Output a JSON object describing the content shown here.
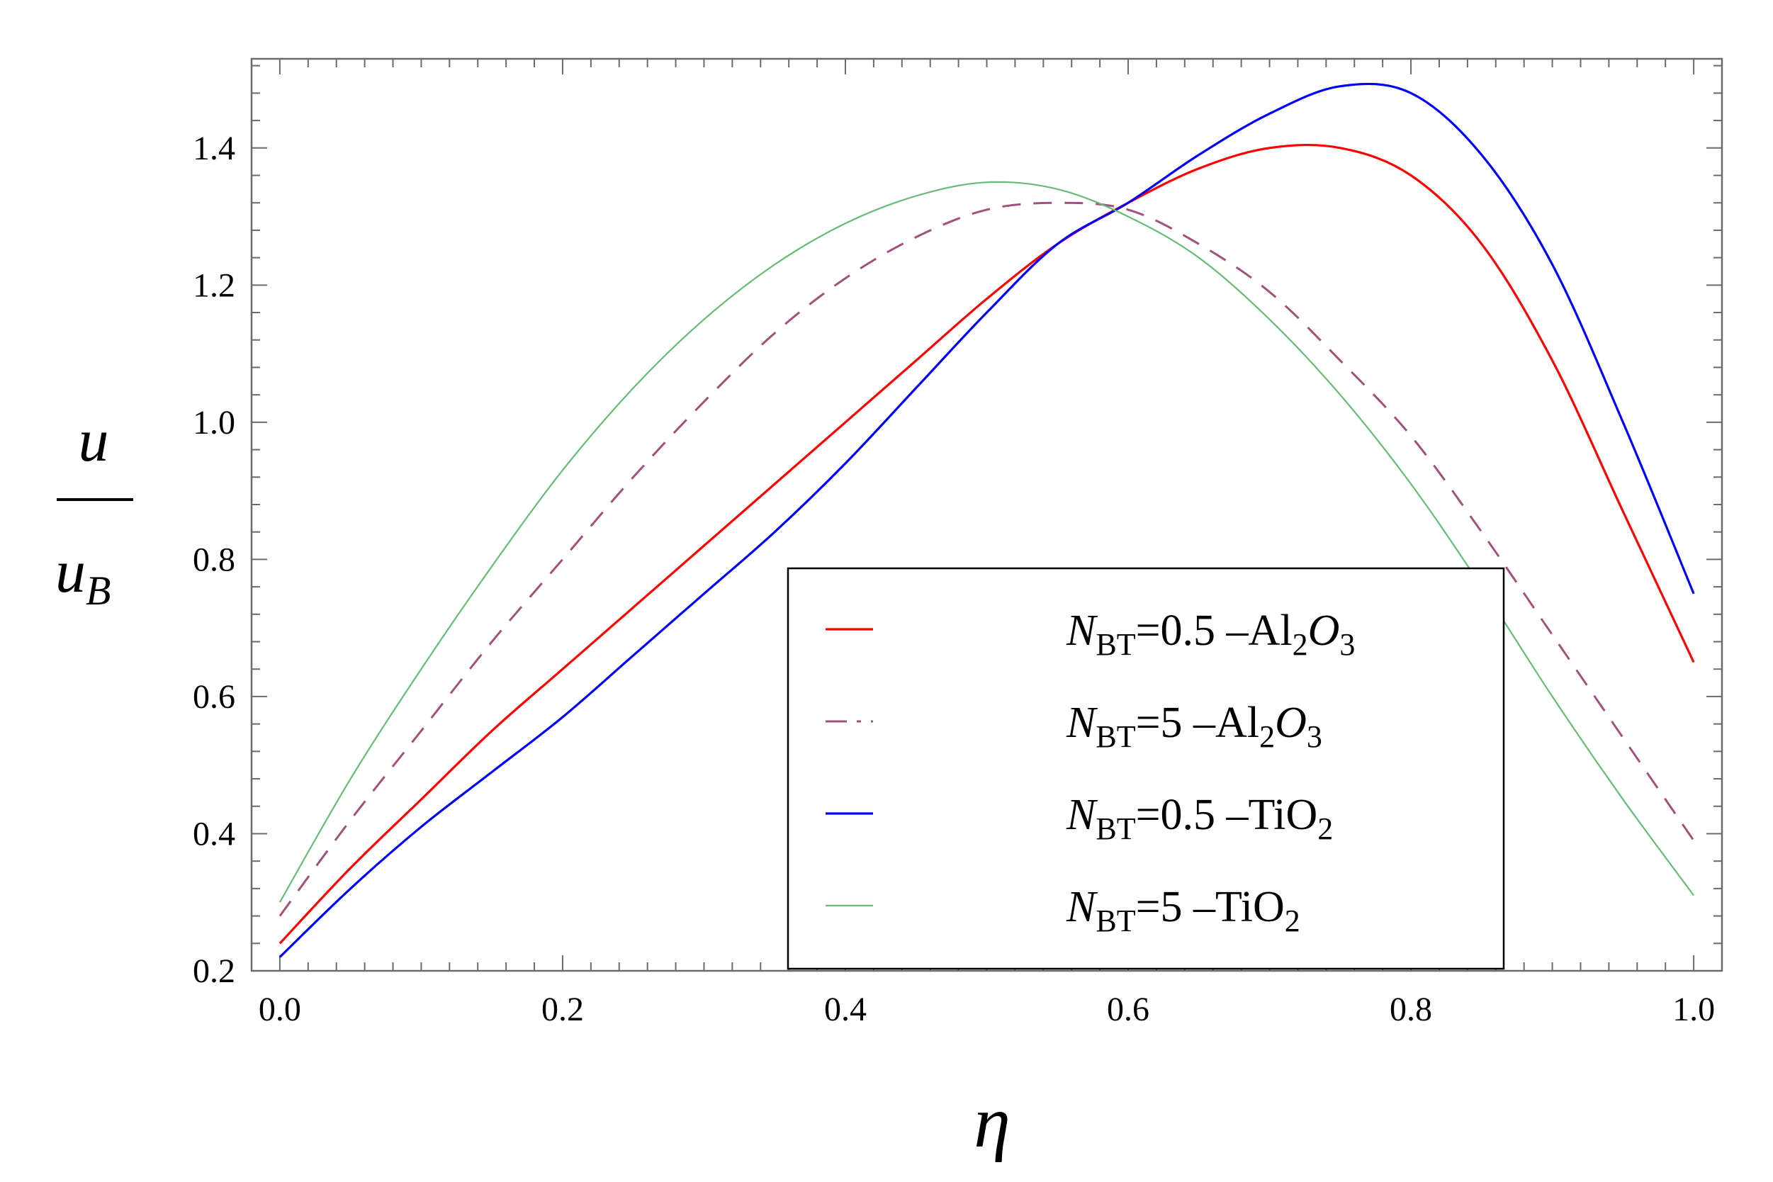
{
  "chart_data": {
    "type": "line",
    "title": "",
    "xlabel": "η",
    "ylabel": {
      "numerator": "u",
      "denominator": "u",
      "denominator_subscript": "B"
    },
    "xlim": [
      -0.02,
      1.02
    ],
    "ylim": [
      0.2,
      1.53
    ],
    "xticks": [
      0.0,
      0.2,
      0.4,
      0.6,
      0.8,
      1.0
    ],
    "xtick_labels": [
      "0.0",
      "0.2",
      "0.4",
      "0.6",
      "0.8",
      "1.0"
    ],
    "yticks": [
      0.2,
      0.4,
      0.6,
      0.8,
      1.0,
      1.2,
      1.4
    ],
    "ytick_labels": [
      "0.2",
      "0.4",
      "0.6",
      "0.8",
      "1.0",
      "1.2",
      "1.4"
    ],
    "grid": false,
    "legend_position": "lower-right",
    "x": [
      0.0,
      0.05,
      0.1,
      0.15,
      0.2,
      0.25,
      0.3,
      0.35,
      0.4,
      0.45,
      0.5,
      0.55,
      0.6,
      0.65,
      0.7,
      0.75,
      0.8,
      0.85,
      0.9,
      0.95,
      1.0
    ],
    "series": [
      {
        "symbol": "N",
        "subscript": "BT",
        "label_rest": "=0.5   –Al",
        "sub2": "2",
        "tail_italic": "O",
        "sub3": "3",
        "color": "#ff0000",
        "dash": "solid",
        "width": 3.2,
        "values": [
          0.24,
          0.35,
          0.45,
          0.55,
          0.64,
          0.73,
          0.82,
          0.91,
          1.0,
          1.09,
          1.18,
          1.26,
          1.32,
          1.37,
          1.4,
          1.4,
          1.36,
          1.26,
          1.09,
          0.87,
          0.65
        ]
      },
      {
        "symbol": "N",
        "subscript": "BT",
        "label_rest": "=5   –Al",
        "sub2": "2",
        "tail_italic": "O",
        "sub3": "3",
        "color": "#a0527c",
        "dash": "dashed",
        "width": 3,
        "values": [
          0.28,
          0.42,
          0.55,
          0.68,
          0.8,
          0.92,
          1.03,
          1.13,
          1.21,
          1.27,
          1.31,
          1.32,
          1.31,
          1.26,
          1.19,
          1.09,
          0.98,
          0.84,
          0.69,
          0.54,
          0.39
        ]
      },
      {
        "symbol": "N",
        "subscript": "BT",
        "label_rest": "=0.5   –TiO",
        "sub2": "2",
        "tail_italic": "",
        "sub3": "",
        "color": "#0000ff",
        "dash": "solid",
        "width": 3.2,
        "values": [
          0.22,
          0.32,
          0.41,
          0.49,
          0.57,
          0.66,
          0.75,
          0.84,
          0.94,
          1.05,
          1.16,
          1.26,
          1.32,
          1.39,
          1.45,
          1.49,
          1.48,
          1.39,
          1.23,
          1.0,
          0.75
        ]
      },
      {
        "symbol": "N",
        "subscript": "BT",
        "label_rest": "=5   –TiO",
        "sub2": "2",
        "tail_italic": "",
        "sub3": "",
        "color": "#66bb77",
        "dash": "solid",
        "width": 2.2,
        "values": [
          0.3,
          0.48,
          0.64,
          0.79,
          0.93,
          1.05,
          1.15,
          1.23,
          1.29,
          1.33,
          1.35,
          1.34,
          1.3,
          1.24,
          1.15,
          1.04,
          0.91,
          0.76,
          0.6,
          0.45,
          0.31
        ]
      }
    ]
  }
}
